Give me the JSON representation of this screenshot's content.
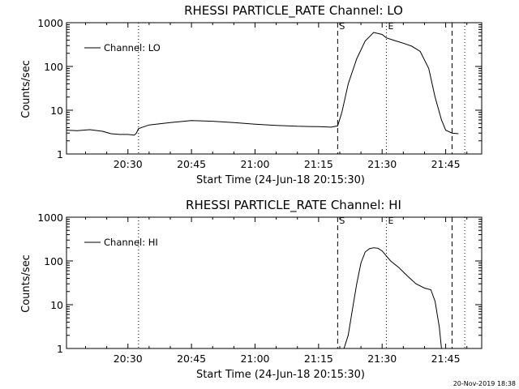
{
  "footer_text": "20-Nov-2019 18:38",
  "chart_data": [
    {
      "type": "line",
      "title": "RHESSI PARTICLE_RATE Channel: LO",
      "xlabel": "Start Time (24-Jun-18 20:15:30)",
      "ylabel": "Counts/sec",
      "y_scale": "log",
      "ylim": [
        1,
        1000
      ],
      "xlim": [
        "20:15:30",
        "21:53:30"
      ],
      "x_ticks": [
        "20:30",
        "20:45",
        "21:00",
        "21:15",
        "21:30",
        "21:45"
      ],
      "y_ticks": [
        "1",
        "10",
        "100",
        "1000"
      ],
      "legend": {
        "position": "top-left",
        "entries": [
          "Channel: LO"
        ]
      },
      "markers": [
        {
          "time": "20:32:30",
          "style": "dotted",
          "label": ""
        },
        {
          "time": "21:19:30",
          "style": "dashed",
          "label": "S"
        },
        {
          "time": "21:31:00",
          "style": "dotted",
          "label": "E"
        },
        {
          "time": "21:46:30",
          "style": "dashed",
          "label": ""
        },
        {
          "time": "21:49:30",
          "style": "dotted",
          "label": ""
        }
      ],
      "series": [
        {
          "name": "Channel: LO",
          "x": [
            "20:15:30",
            "20:18:00",
            "20:21:00",
            "20:24:00",
            "20:26:00",
            "20:28:00",
            "20:30:00",
            "20:31:30",
            "20:32:00",
            "20:32:30",
            "20:35:00",
            "20:40:00",
            "20:45:00",
            "20:50:00",
            "20:55:00",
            "21:00:00",
            "21:05:00",
            "21:10:00",
            "21:15:00",
            "21:18:00",
            "21:19:30",
            "21:20:30",
            "21:22:00",
            "21:24:00",
            "21:26:00",
            "21:28:00",
            "21:30:00",
            "21:31:00",
            "21:33:00",
            "21:35:00",
            "21:37:00",
            "21:39:00",
            "21:41:00",
            "21:42:30",
            "21:44:00",
            "21:45:00",
            "21:46:30",
            "21:48:00"
          ],
          "values": [
            3.5,
            3.4,
            3.6,
            3.3,
            2.9,
            2.8,
            2.8,
            2.7,
            3.0,
            3.8,
            4.6,
            5.2,
            5.8,
            5.6,
            5.2,
            4.8,
            4.5,
            4.3,
            4.2,
            4.1,
            4.4,
            9,
            40,
            150,
            380,
            600,
            540,
            450,
            390,
            340,
            290,
            220,
            90,
            20,
            6,
            3.5,
            3.0,
            2.9
          ]
        }
      ]
    },
    {
      "type": "line",
      "title": "RHESSI PARTICLE_RATE Channel: HI",
      "xlabel": "Start Time (24-Jun-18 20:15:30)",
      "ylabel": "Counts/sec",
      "y_scale": "log",
      "ylim": [
        1,
        1000
      ],
      "xlim": [
        "20:15:30",
        "21:53:30"
      ],
      "x_ticks": [
        "20:30",
        "20:45",
        "21:00",
        "21:15",
        "21:30",
        "21:45"
      ],
      "y_ticks": [
        "1",
        "10",
        "100",
        "1000"
      ],
      "legend": {
        "position": "top-left",
        "entries": [
          "Channel: HI"
        ]
      },
      "markers": [
        {
          "time": "20:32:30",
          "style": "dotted",
          "label": ""
        },
        {
          "time": "21:19:30",
          "style": "dashed",
          "label": "S"
        },
        {
          "time": "21:31:00",
          "style": "dotted",
          "label": "E"
        },
        {
          "time": "21:46:30",
          "style": "dashed",
          "label": ""
        },
        {
          "time": "21:49:30",
          "style": "dotted",
          "label": ""
        }
      ],
      "series": [
        {
          "name": "Channel: HI",
          "x": [
            "21:21:00",
            "21:22:00",
            "21:23:00",
            "21:24:00",
            "21:25:00",
            "21:26:00",
            "21:27:00",
            "21:28:00",
            "21:29:00",
            "21:30:00",
            "21:31:00",
            "21:32:00",
            "21:34:00",
            "21:36:00",
            "21:38:00",
            "21:40:00",
            "21:41:30",
            "21:42:30",
            "21:43:30",
            "21:44:00"
          ],
          "values": [
            1.0,
            2.0,
            8,
            30,
            90,
            160,
            190,
            200,
            195,
            170,
            130,
            100,
            70,
            45,
            30,
            24,
            22,
            12,
            3,
            1.0
          ]
        }
      ]
    }
  ]
}
